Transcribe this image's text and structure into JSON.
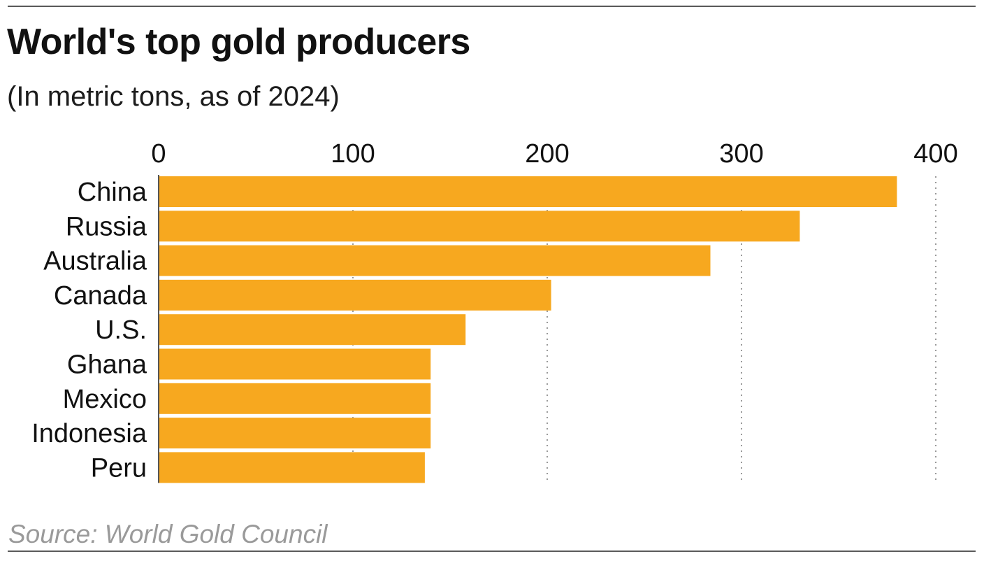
{
  "header": {
    "title": "World's top gold producers",
    "subtitle": "(In metric tons, as of 2024)"
  },
  "footer": {
    "source": "Source: World Gold Council"
  },
  "colors": {
    "bar": "#f7a81f",
    "grid": "#9a9a9a",
    "axis": "#555555",
    "text": "#111111",
    "source": "#9a9a9a",
    "rule": "#5a5a5a"
  },
  "chart_data": {
    "type": "bar",
    "orientation": "horizontal",
    "title": "World's top gold producers",
    "subtitle": "(In metric tons, as of 2024)",
    "xlabel": "",
    "ylabel": "",
    "categories": [
      "China",
      "Russia",
      "Australia",
      "Canada",
      "U.S.",
      "Ghana",
      "Mexico",
      "Indonesia",
      "Peru"
    ],
    "values": [
      380,
      330,
      284,
      202,
      158,
      140,
      140,
      140,
      137
    ],
    "xlim": [
      0,
      400
    ],
    "xticks": [
      0,
      100,
      200,
      300,
      400
    ],
    "tick_labels": [
      "0",
      "100",
      "200",
      "300",
      "400"
    ],
    "tick_position": "top",
    "grid": "vertical dotted",
    "legend": "none",
    "source": "Source: World Gold Council"
  }
}
